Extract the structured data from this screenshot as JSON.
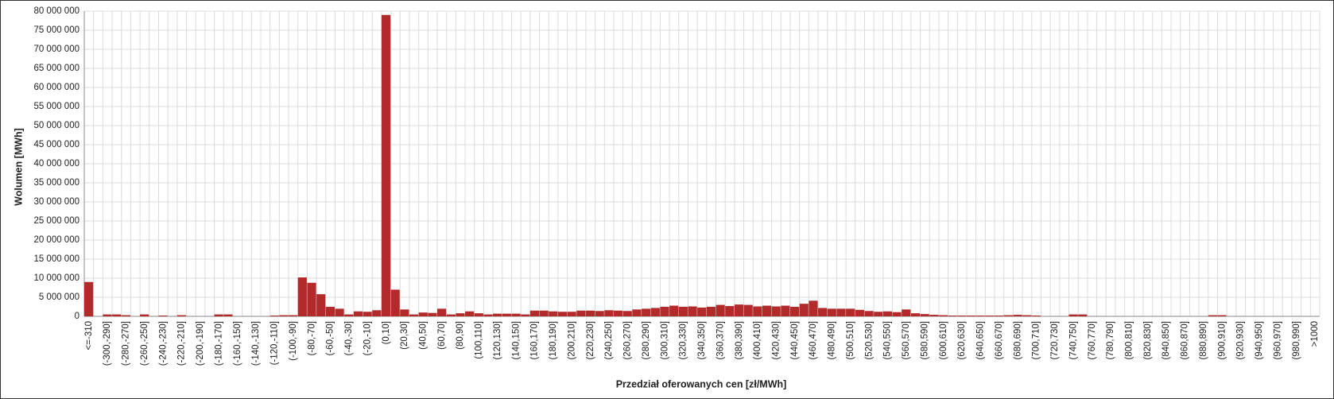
{
  "chart_data": {
    "type": "bar",
    "x_label": "Przedział oferowanych cen [zł/MWh]",
    "y_label": "Wolumen [MWh]",
    "color": "#b22a2a",
    "grid": true,
    "categories": [
      "<=-310",
      null,
      "(-300,-290]",
      null,
      "(-280,-270]",
      null,
      "(-260,-250]",
      null,
      "(-240,-230]",
      null,
      "(-220,-210]",
      null,
      "(-200,-190]",
      null,
      "(-180,-170]",
      null,
      "(-160,-150]",
      null,
      "(-140,-130]",
      null,
      "(-120,-110]",
      null,
      "(-100,-90]",
      null,
      "(-80,-70]",
      null,
      "(-60,-50]",
      null,
      "(-40,-30]",
      null,
      "(-20,-10]",
      null,
      "(0,10]",
      null,
      "(20,30]",
      null,
      "(40,50]",
      null,
      "(60,70]",
      null,
      "(80,90]",
      null,
      "(100,110]",
      null,
      "(120,130]",
      null,
      "(140,150]",
      null,
      "(160,170]",
      null,
      "(180,190]",
      null,
      "(200,210]",
      null,
      "(220,230]",
      null,
      "(240,250]",
      null,
      "(260,270]",
      null,
      "(280,290]",
      null,
      "(300,310]",
      null,
      "(320,330]",
      null,
      "(340,350]",
      null,
      "(360,370]",
      null,
      "(380,390]",
      null,
      "(400,410]",
      null,
      "(420,430]",
      null,
      "(440,450]",
      null,
      "(460,470]",
      null,
      "(480,490]",
      null,
      "(500,510]",
      null,
      "(520,530]",
      null,
      "(540,550]",
      null,
      "(560,570]",
      null,
      "(580,590]",
      null,
      "(600,610]",
      null,
      "(620,630]",
      null,
      "(640,650]",
      null,
      "(660,670]",
      null,
      "(680,690]",
      null,
      "(700,710]",
      null,
      "(720,730]",
      null,
      "(740,750]",
      null,
      "(760,770]",
      null,
      "(780,790]",
      null,
      "(800,810]",
      null,
      "(820,830]",
      null,
      "(840,850]",
      null,
      "(860,870]",
      null,
      "(880,890]",
      null,
      "(900,910]",
      null,
      "(920,930]",
      null,
      "(940,950]",
      null,
      "(960,970]",
      null,
      "(980,990]",
      null,
      ">1000"
    ],
    "values": [
      9000000,
      0,
      500000,
      500000,
      300000,
      0,
      500000,
      0,
      200000,
      0,
      300000,
      0,
      0,
      0,
      500000,
      500000,
      0,
      0,
      0,
      0,
      200000,
      300000,
      300000,
      10200000,
      8800000,
      5800000,
      2500000,
      2000000,
      500000,
      1300000,
      1200000,
      1600000,
      79000000,
      7000000,
      1800000,
      500000,
      1000000,
      900000,
      2000000,
      500000,
      800000,
      1300000,
      800000,
      500000,
      700000,
      700000,
      700000,
      500000,
      1500000,
      1500000,
      1300000,
      1200000,
      1200000,
      1500000,
      1500000,
      1400000,
      1600000,
      1500000,
      1400000,
      1800000,
      2000000,
      2200000,
      2500000,
      2800000,
      2500000,
      2600000,
      2300000,
      2500000,
      3000000,
      2700000,
      3100000,
      3000000,
      2600000,
      2800000,
      2600000,
      2800000,
      2500000,
      3300000,
      4100000,
      2200000,
      2000000,
      2000000,
      2000000,
      1700000,
      1400000,
      1200000,
      1300000,
      1100000,
      1800000,
      800000,
      600000,
      400000,
      300000,
      200000,
      200000,
      200000,
      200000,
      200000,
      200000,
      300000,
      400000,
      300000,
      200000,
      0,
      0,
      0,
      500000,
      500000,
      0,
      0,
      0,
      0,
      0,
      0,
      0,
      0,
      0,
      0,
      0,
      0,
      0,
      300000,
      300000,
      0,
      0,
      0,
      0,
      0,
      0,
      0,
      0,
      0,
      0
    ],
    "ylim": [
      0,
      80000000
    ],
    "yticks": [
      0,
      {
        "value": 5000000,
        "label": "5 000 000"
      },
      {
        "value": 10000000,
        "label": "10 000 000"
      },
      {
        "value": 15000000,
        "label": "15 000 000"
      },
      {
        "value": 20000000,
        "label": "20 000 000"
      },
      {
        "value": 25000000,
        "label": "25 000 000"
      },
      {
        "value": 30000000,
        "label": "30 000 000"
      },
      {
        "value": 35000000,
        "label": "35 000 000"
      },
      {
        "value": 40000000,
        "label": "40 000 000"
      },
      {
        "value": 45000000,
        "label": "45 000 000"
      },
      {
        "value": 50000000,
        "label": "50 000 000"
      },
      {
        "value": 55000000,
        "label": "55 000 000"
      },
      {
        "value": 60000000,
        "label": "60 000 000"
      },
      {
        "value": 65000000,
        "label": "65 000 000"
      },
      {
        "value": 70000000,
        "label": "70 000 000"
      },
      {
        "value": 75000000,
        "label": "75 000 000"
      },
      {
        "value": 80000000,
        "label": "80 000 000"
      }
    ]
  }
}
